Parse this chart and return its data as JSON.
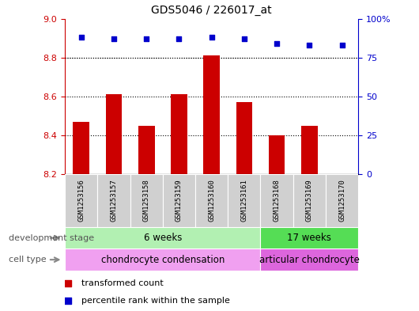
{
  "title": "GDS5046 / 226017_at",
  "samples": [
    "GSM1253156",
    "GSM1253157",
    "GSM1253158",
    "GSM1253159",
    "GSM1253160",
    "GSM1253161",
    "GSM1253168",
    "GSM1253169",
    "GSM1253170"
  ],
  "bar_values": [
    8.47,
    8.61,
    8.45,
    8.61,
    8.81,
    8.57,
    8.4,
    8.45,
    8.2
  ],
  "bar_base": 8.2,
  "dot_values": [
    88,
    87,
    87,
    87,
    88,
    87,
    84,
    83,
    83
  ],
  "ylim_left": [
    8.2,
    9.0
  ],
  "ylim_right": [
    0,
    100
  ],
  "yticks_left": [
    8.2,
    8.4,
    8.6,
    8.8,
    9.0
  ],
  "yticks_right": [
    0,
    25,
    50,
    75,
    100
  ],
  "bar_color": "#cc0000",
  "dot_color": "#0000cc",
  "dev_stage_groups": [
    {
      "label": "6 weeks",
      "start": 0,
      "end": 6,
      "color": "#b2f0b2"
    },
    {
      "label": "17 weeks",
      "start": 6,
      "end": 9,
      "color": "#55dd55"
    }
  ],
  "cell_type_groups": [
    {
      "label": "chondrocyte condensation",
      "start": 0,
      "end": 6,
      "color": "#f0a0f0"
    },
    {
      "label": "articular chondrocyte",
      "start": 6,
      "end": 9,
      "color": "#dd66dd"
    }
  ],
  "legend_items": [
    {
      "label": "transformed count",
      "color": "#cc0000"
    },
    {
      "label": "percentile rank within the sample",
      "color": "#0000cc"
    }
  ],
  "dev_stage_label": "development stage",
  "cell_type_label": "cell type",
  "background_color": "#ffffff",
  "sample_box_color": "#d0d0d0",
  "grid_dotted_color": "#000000",
  "left_axis_color": "#cc0000",
  "right_axis_color": "#0000cc"
}
